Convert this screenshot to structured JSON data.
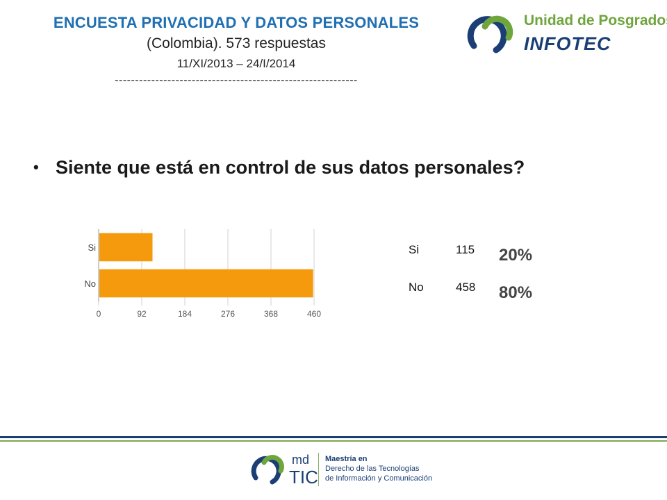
{
  "header": {
    "title": "ENCUESTA PRIVACIDAD Y DATOS PERSONALES",
    "subtitle": "(Colombia). 573 respuestas",
    "dates": "11/XI/2013 – 24/I/2014",
    "dashes": "------------------------------------------------------------"
  },
  "logo_top": {
    "line1": "Unidad de Posgrados",
    "line2": "INFOTEC"
  },
  "question": {
    "bullet": "•",
    "text": "Siente que está en control de sus datos personales?"
  },
  "stats": [
    {
      "label": "Si",
      "count": "115",
      "percent": "20%"
    },
    {
      "label": "No",
      "count": "458",
      "percent": "80%"
    }
  ],
  "chart_data": {
    "type": "bar",
    "orientation": "horizontal",
    "categories": [
      "Si",
      "No"
    ],
    "values": [
      115,
      458
    ],
    "xlim": [
      0,
      460
    ],
    "xticks": [
      0,
      92,
      184,
      276,
      368,
      460
    ],
    "grid": true,
    "bar_color": "#f59a0c"
  },
  "logo_bottom": {
    "md": "md",
    "tic": "TIC",
    "line1": "Maestría en",
    "line2": "Derecho de las Tecnologías",
    "line3": "de Información y Comunicación"
  }
}
